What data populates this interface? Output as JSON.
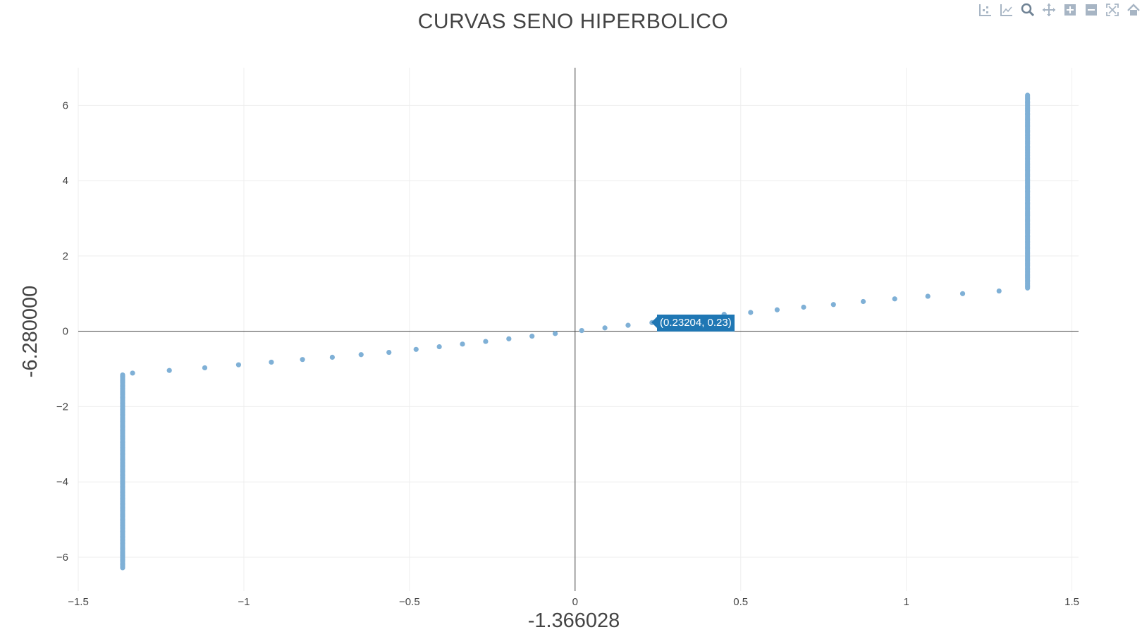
{
  "chart_data": {
    "type": "scatter",
    "title": "CURVAS SENO HIPERBOLICO",
    "xlabel": "-1.366028",
    "ylabel": "-6.280000",
    "xlim": [
      -1.5,
      1.52
    ],
    "ylim": [
      -6.9,
      7.0
    ],
    "x_ticks": [
      -1.5,
      -1,
      -0.5,
      0,
      0.5,
      1,
      1.5
    ],
    "x_tick_labels": [
      "−1.5",
      "−1",
      "−0.5",
      "0",
      "0.5",
      "1",
      "1.5"
    ],
    "y_ticks": [
      -6,
      -4,
      -2,
      0,
      2,
      4,
      6
    ],
    "y_tick_labels": [
      "−6",
      "−4",
      "−2",
      "0",
      "2",
      "4",
      "6"
    ],
    "grid": true,
    "series": [
      {
        "marker_color": "#7fb0d6",
        "points": [
          [
            -1.336,
            -1.11
          ],
          [
            -1.225,
            -1.04
          ],
          [
            -1.118,
            -0.97
          ],
          [
            -1.016,
            -0.89
          ],
          [
            -0.917,
            -0.82
          ],
          [
            -0.823,
            -0.75
          ],
          [
            -0.733,
            -0.69
          ],
          [
            -0.646,
            -0.62
          ],
          [
            -0.562,
            -0.56
          ],
          [
            -0.48,
            -0.48
          ],
          [
            -0.41,
            -0.41
          ],
          [
            -0.34,
            -0.34
          ],
          [
            -0.27,
            -0.27
          ],
          [
            -0.2,
            -0.2
          ],
          [
            -0.13,
            -0.13
          ],
          [
            -0.06,
            -0.06
          ],
          [
            0.02,
            0.02
          ],
          [
            0.09,
            0.09
          ],
          [
            0.16,
            0.16
          ],
          [
            0.23204,
            0.23
          ],
          [
            0.3,
            0.3
          ],
          [
            0.37,
            0.37
          ],
          [
            0.45,
            0.45
          ],
          [
            0.53,
            0.5
          ],
          [
            0.61,
            0.57
          ],
          [
            0.69,
            0.64
          ],
          [
            0.78,
            0.71
          ],
          [
            0.87,
            0.79
          ],
          [
            0.965,
            0.86
          ],
          [
            1.065,
            0.93
          ],
          [
            1.17,
            1.0
          ],
          [
            1.28,
            1.07
          ]
        ],
        "vertical_columns": [
          {
            "x": -1.366028,
            "y_from": -6.28,
            "y_to": -1.15,
            "step": 0.04
          },
          {
            "x": 1.366028,
            "y_from": 1.15,
            "y_to": 6.28,
            "step": 0.04
          }
        ]
      }
    ],
    "hover": {
      "text": "(0.23204, 0.23)",
      "x": 0.23204,
      "y": 0.23,
      "color": "#1f77b4"
    }
  },
  "modebar": {
    "icons": [
      "compare-data-icon",
      "closest-data-icon",
      "zoom-icon",
      "pan-icon",
      "zoom-in-icon",
      "zoom-out-icon",
      "autoscale-icon",
      "reset-axes-icon"
    ]
  },
  "colors": {
    "text": "#444444",
    "grid": "#eeeeee",
    "marker": "#7fb0d6",
    "hover": "#1f77b4",
    "icon": "#a7b5c4"
  }
}
